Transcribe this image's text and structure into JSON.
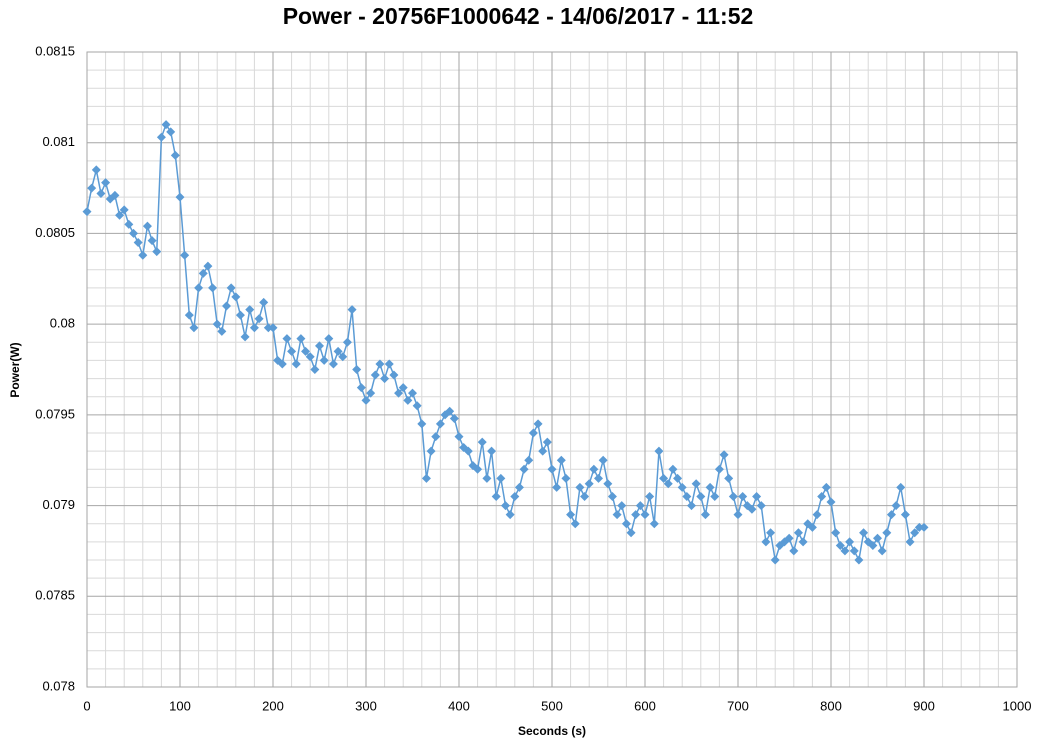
{
  "chart_data": {
    "type": "line",
    "title": "Power - 20756F1000642 - 14/06/2017 - 11:52",
    "xlabel": "Seconds (s)",
    "ylabel": "Power(W)",
    "color": "#5b9bd5",
    "marker": "diamond",
    "grid": true,
    "minor_grid": true,
    "xlim": [
      0,
      1000
    ],
    "xticks": [
      0,
      100,
      200,
      300,
      400,
      500,
      600,
      700,
      800,
      900,
      1000
    ],
    "ylim": [
      0.078,
      0.0815
    ],
    "yticks": [
      0.078,
      0.0785,
      0.079,
      0.0795,
      0.08,
      0.0805,
      0.081,
      0.0815
    ],
    "x": [
      0,
      5,
      10,
      15,
      20,
      25,
      30,
      35,
      40,
      45,
      50,
      55,
      60,
      65,
      70,
      75,
      80,
      85,
      90,
      95,
      100,
      105,
      110,
      115,
      120,
      125,
      130,
      135,
      140,
      145,
      150,
      155,
      160,
      165,
      170,
      175,
      180,
      185,
      190,
      195,
      200,
      205,
      210,
      215,
      220,
      225,
      230,
      235,
      240,
      245,
      250,
      255,
      260,
      265,
      270,
      275,
      280,
      285,
      290,
      295,
      300,
      305,
      310,
      315,
      320,
      325,
      330,
      335,
      340,
      345,
      350,
      355,
      360,
      365,
      370,
      375,
      380,
      385,
      390,
      395,
      400,
      405,
      410,
      415,
      420,
      425,
      430,
      435,
      440,
      445,
      450,
      455,
      460,
      465,
      470,
      475,
      480,
      485,
      490,
      495,
      500,
      505,
      510,
      515,
      520,
      525,
      530,
      535,
      540,
      545,
      550,
      555,
      560,
      565,
      570,
      575,
      580,
      585,
      590,
      595,
      600,
      605,
      610,
      615,
      620,
      625,
      630,
      635,
      640,
      645,
      650,
      655,
      660,
      665,
      670,
      675,
      680,
      685,
      690,
      695,
      700,
      705,
      710,
      715,
      720,
      725,
      730,
      735,
      740,
      745,
      750,
      755,
      760,
      765,
      770,
      775,
      780,
      785,
      790,
      795,
      800,
      805,
      810,
      815,
      820,
      825,
      830,
      835,
      840,
      845,
      850,
      855,
      860,
      865,
      870,
      875,
      880,
      885,
      890,
      895,
      900
    ],
    "values": [
      0.08062,
      0.08075,
      0.08085,
      0.08072,
      0.08078,
      0.08069,
      0.08071,
      0.0806,
      0.08063,
      0.08055,
      0.0805,
      0.08045,
      0.08038,
      0.08054,
      0.08046,
      0.0804,
      0.08103,
      0.0811,
      0.08106,
      0.08093,
      0.0807,
      0.08038,
      0.08005,
      0.07998,
      0.0802,
      0.08028,
      0.08032,
      0.0802,
      0.08,
      0.07996,
      0.0801,
      0.0802,
      0.08015,
      0.08005,
      0.07993,
      0.08008,
      0.07998,
      0.08003,
      0.08012,
      0.07998,
      0.07998,
      0.0798,
      0.07978,
      0.07992,
      0.07985,
      0.07978,
      0.07992,
      0.07985,
      0.07982,
      0.07975,
      0.07988,
      0.0798,
      0.07992,
      0.07978,
      0.07985,
      0.07982,
      0.0799,
      0.08008,
      0.07975,
      0.07965,
      0.07958,
      0.07962,
      0.07972,
      0.07978,
      0.0797,
      0.07978,
      0.07972,
      0.07962,
      0.07965,
      0.07958,
      0.07962,
      0.07955,
      0.07945,
      0.07915,
      0.0793,
      0.07938,
      0.07945,
      0.0795,
      0.07952,
      0.07948,
      0.07938,
      0.07932,
      0.0793,
      0.07922,
      0.0792,
      0.07935,
      0.07915,
      0.0793,
      0.07905,
      0.07915,
      0.079,
      0.07895,
      0.07905,
      0.0791,
      0.0792,
      0.07925,
      0.0794,
      0.07945,
      0.0793,
      0.07935,
      0.0792,
      0.0791,
      0.07925,
      0.07915,
      0.07895,
      0.0789,
      0.0791,
      0.07905,
      0.07912,
      0.0792,
      0.07915,
      0.07925,
      0.07912,
      0.07905,
      0.07895,
      0.079,
      0.0789,
      0.07885,
      0.07895,
      0.079,
      0.07895,
      0.07905,
      0.0789,
      0.0793,
      0.07915,
      0.07912,
      0.0792,
      0.07915,
      0.0791,
      0.07905,
      0.079,
      0.07912,
      0.07905,
      0.07895,
      0.0791,
      0.07905,
      0.0792,
      0.07928,
      0.07915,
      0.07905,
      0.07895,
      0.07905,
      0.079,
      0.07898,
      0.07905,
      0.079,
      0.0788,
      0.07885,
      0.0787,
      0.07878,
      0.0788,
      0.07882,
      0.07875,
      0.07885,
      0.0788,
      0.0789,
      0.07888,
      0.07895,
      0.07905,
      0.0791,
      0.07902,
      0.07885,
      0.07878,
      0.07875,
      0.0788,
      0.07875,
      0.0787,
      0.07885,
      0.0788,
      0.07878,
      0.07882,
      0.07875,
      0.07885,
      0.07895,
      0.079,
      0.0791,
      0.07895,
      0.0788,
      0.07885,
      0.07888,
      0.07888
    ]
  }
}
